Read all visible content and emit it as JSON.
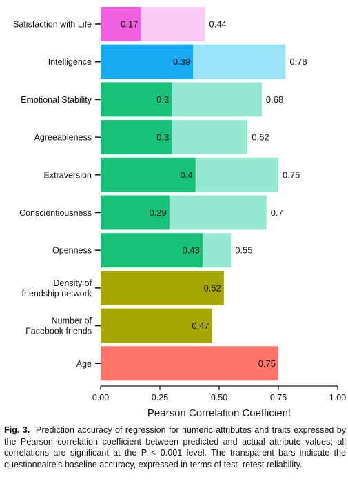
{
  "caption": {
    "label": "Fig. 3.",
    "text": "Prediction accuracy of regression for numeric attributes and traits expressed by the Pearson correlation coefficient between predicted and actual attribute values; all correlations are significant at the P < 0.001 level. The transparent bars indicate the questionnaire's baseline accuracy, expressed in terms of test–retest reliability."
  },
  "chart_data": {
    "type": "bar",
    "orientation": "horizontal",
    "xlabel": "Pearson Correlation Coefficient",
    "xlim": [
      0,
      1
    ],
    "xticks": [
      0,
      0.25,
      0.5,
      0.75,
      1.0
    ],
    "xtick_labels": [
      "0.00",
      "0.25",
      "0.50",
      "0.75",
      "1.00"
    ],
    "grid": false,
    "categories": [
      {
        "label": [
          "Satisfaction with Life"
        ],
        "prediction": 0.17,
        "prediction_label": "0.17",
        "baseline": 0.44,
        "baseline_label": "0.44",
        "color": "#f060e0",
        "baseline_color": "#fcc8f6"
      },
      {
        "label": [
          "Intelligence"
        ],
        "prediction": 0.39,
        "prediction_label": "0.39",
        "baseline": 0.78,
        "baseline_label": "0.78",
        "color": "#18aaf2",
        "baseline_color": "#9ae4fb"
      },
      {
        "label": [
          "Emotional Stability"
        ],
        "prediction": 0.3,
        "prediction_label": "0.3",
        "baseline": 0.68,
        "baseline_label": "0.68",
        "color": "#19c078",
        "baseline_color": "#94e9d0"
      },
      {
        "label": [
          "Agreeableness"
        ],
        "prediction": 0.3,
        "prediction_label": "0.3",
        "baseline": 0.62,
        "baseline_label": "0.62",
        "color": "#19c078",
        "baseline_color": "#94e9d0"
      },
      {
        "label": [
          "Extraversion"
        ],
        "prediction": 0.4,
        "prediction_label": "0.4",
        "baseline": 0.75,
        "baseline_label": "0.75",
        "color": "#19c078",
        "baseline_color": "#94e9d0"
      },
      {
        "label": [
          "Conscientiousness"
        ],
        "prediction": 0.29,
        "prediction_label": "0.29",
        "baseline": 0.7,
        "baseline_label": "0.7",
        "color": "#19c078",
        "baseline_color": "#94e9d0"
      },
      {
        "label": [
          "Openness"
        ],
        "prediction": 0.43,
        "prediction_label": "0.43",
        "baseline": 0.55,
        "baseline_label": "0.55",
        "color": "#19c078",
        "baseline_color": "#94e9d0"
      },
      {
        "label": [
          "Density of",
          "friendship network"
        ],
        "prediction": 0.52,
        "prediction_label": "0.52",
        "baseline": null,
        "color": "#a6a800"
      },
      {
        "label": [
          "Number of",
          "Facebook friends"
        ],
        "prediction": 0.47,
        "prediction_label": "0.47",
        "baseline": null,
        "color": "#a6a800"
      },
      {
        "label": [
          "Age"
        ],
        "prediction": 0.75,
        "prediction_label": "0.75",
        "baseline": null,
        "color": "#ff7468"
      }
    ]
  }
}
